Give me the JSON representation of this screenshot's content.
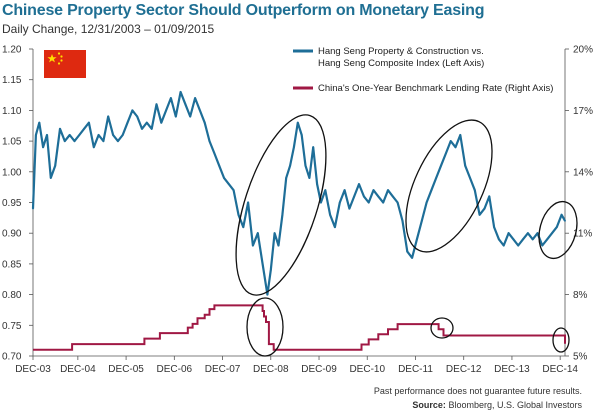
{
  "title": "Chinese Property Sector Should Outperform on Monetary Easing",
  "subtitle": "Daily Change, 12/31/2003 – 01/09/2015",
  "footnote": "Past performance does not guarantee future results.",
  "source_label": "Source:",
  "source_text": "Bloomberg, U.S. Global Investors",
  "colors": {
    "property_line": "#1e6e98",
    "rate_line": "#a01844",
    "title": "#1f6f93",
    "flag_red": "#de2910",
    "flag_star": "#ffde00"
  },
  "icons": {
    "flag": "china-flag-icon"
  },
  "chart_data": {
    "type": "line",
    "title": "Chinese Property Sector Should Outperform on Monetary Easing",
    "subtitle": "Daily Change, 12/31/2003 – 01/09/2015",
    "x_tick_labels": [
      "DEC-03",
      "DEC-04",
      "DEC-05",
      "DEC-06",
      "DEC-07",
      "DEC-08",
      "DEC-09",
      "DEC-10",
      "DEC-11",
      "DEC-12",
      "DEC-13",
      "DEC-14"
    ],
    "left_axis": {
      "ylim": [
        0.7,
        1.2
      ],
      "ticks": [
        "0.70",
        "0.75",
        "0.80",
        "0.85",
        "0.90",
        "0.95",
        "1.00",
        "1.05",
        "1.10",
        "1.15",
        "1.20"
      ]
    },
    "right_axis": {
      "ylim": [
        5,
        20
      ],
      "ticks": [
        "5%",
        "8%",
        "11%",
        "14%",
        "17%",
        "20%"
      ]
    },
    "legend_position": "top-right",
    "series": [
      {
        "name": "Hang Seng Property & Construction vs. Hang Seng Composite Index (Left Axis)",
        "axis": "left",
        "x": [
          2003.99,
          2004.05,
          2004.12,
          2004.2,
          2004.28,
          2004.36,
          2004.45,
          2004.55,
          2004.65,
          2004.75,
          2004.85,
          2004.95,
          2005.05,
          2005.15,
          2005.25,
          2005.35,
          2005.45,
          2005.55,
          2005.65,
          2005.75,
          2005.85,
          2005.95,
          2006.05,
          2006.15,
          2006.25,
          2006.35,
          2006.45,
          2006.55,
          2006.65,
          2006.75,
          2006.85,
          2006.95,
          2007.05,
          2007.15,
          2007.25,
          2007.35,
          2007.45,
          2007.55,
          2007.65,
          2007.75,
          2007.85,
          2007.95,
          2008.05,
          2008.15,
          2008.25,
          2008.35,
          2008.45,
          2008.55,
          2008.65,
          2008.75,
          2008.85,
          2008.92,
          2009.0,
          2009.08,
          2009.16,
          2009.24,
          2009.32,
          2009.4,
          2009.48,
          2009.56,
          2009.64,
          2009.72,
          2009.8,
          2009.88,
          2009.96,
          2010.05,
          2010.15,
          2010.25,
          2010.35,
          2010.45,
          2010.55,
          2010.65,
          2010.75,
          2010.85,
          2010.95,
          2011.05,
          2011.15,
          2011.25,
          2011.35,
          2011.45,
          2011.55,
          2011.65,
          2011.75,
          2011.85,
          2011.95,
          2012.05,
          2012.15,
          2012.25,
          2012.35,
          2012.45,
          2012.55,
          2012.65,
          2012.75,
          2012.85,
          2012.95,
          2013.05,
          2013.15,
          2013.25,
          2013.35,
          2013.45,
          2013.55,
          2013.65,
          2013.75,
          2013.85,
          2013.95,
          2014.05,
          2014.15,
          2014.25,
          2014.35,
          2014.45,
          2014.55,
          2014.65,
          2014.75,
          2014.85,
          2014.95,
          2015.02
        ],
        "values": [
          0.94,
          1.06,
          1.08,
          1.04,
          1.06,
          0.99,
          1.01,
          1.07,
          1.05,
          1.06,
          1.05,
          1.06,
          1.07,
          1.08,
          1.04,
          1.06,
          1.05,
          1.09,
          1.06,
          1.05,
          1.06,
          1.08,
          1.1,
          1.09,
          1.07,
          1.08,
          1.07,
          1.11,
          1.08,
          1.1,
          1.12,
          1.09,
          1.13,
          1.11,
          1.09,
          1.12,
          1.1,
          1.08,
          1.05,
          1.03,
          1.01,
          0.99,
          0.98,
          0.97,
          0.93,
          0.91,
          0.95,
          0.88,
          0.9,
          0.85,
          0.8,
          0.84,
          0.9,
          0.88,
          0.93,
          0.99,
          1.01,
          1.04,
          1.08,
          1.06,
          1.01,
          0.99,
          1.04,
          0.98,
          0.95,
          0.97,
          0.93,
          0.91,
          0.95,
          0.97,
          0.94,
          0.96,
          0.98,
          0.96,
          0.95,
          0.97,
          0.96,
          0.95,
          0.97,
          0.96,
          0.95,
          0.92,
          0.87,
          0.86,
          0.89,
          0.92,
          0.95,
          0.97,
          0.99,
          1.01,
          1.03,
          1.05,
          1.04,
          1.06,
          1.01,
          0.99,
          0.97,
          0.93,
          0.94,
          0.96,
          0.91,
          0.89,
          0.88,
          0.9,
          0.89,
          0.88,
          0.89,
          0.9,
          0.89,
          0.9,
          0.88,
          0.89,
          0.9,
          0.91,
          0.93,
          0.92
        ]
      },
      {
        "name": "China's One-Year Benchmark Lending Rate (Right Axis)",
        "axis": "right",
        "x": [
          2003.99,
          2004.8,
          2006.3,
          2006.62,
          2007.2,
          2007.3,
          2007.4,
          2007.55,
          2007.65,
          2007.75,
          2007.9,
          2008.75,
          2008.78,
          2008.82,
          2008.88,
          2008.98,
          2010.8,
          2010.95,
          2011.15,
          2011.35,
          2011.55,
          2012.4,
          2012.5,
          2014.85,
          2015.02
        ],
        "values": [
          5.31,
          5.58,
          5.85,
          6.12,
          6.39,
          6.57,
          6.84,
          7.02,
          7.29,
          7.47,
          7.47,
          7.2,
          6.93,
          6.66,
          5.58,
          5.31,
          5.56,
          5.81,
          6.06,
          6.31,
          6.56,
          6.31,
          6.0,
          6.0,
          5.6
        ]
      }
    ],
    "annotations": [
      "ellipse 2008 trough",
      "ellipse late-2008 rate drop",
      "ellipse 2011-2012 rally",
      "ellipse 2012 rate cut",
      "ellipse late-2014 rise",
      "ellipse late-2014 rate cut"
    ]
  }
}
